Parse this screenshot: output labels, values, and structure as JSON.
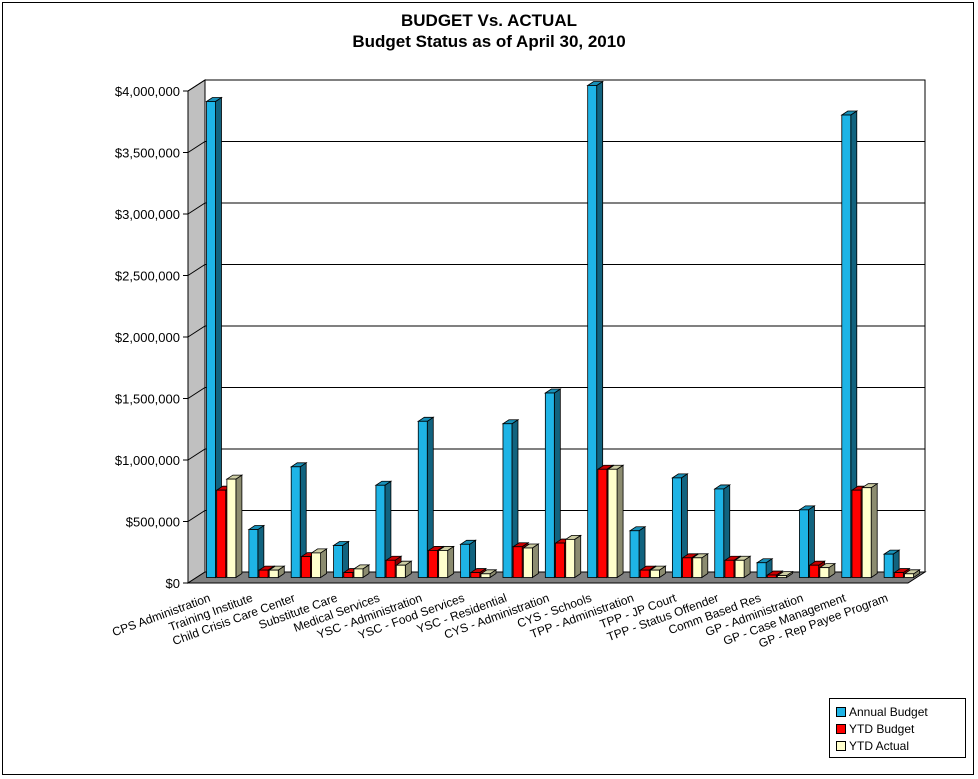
{
  "chart_data": {
    "type": "bar",
    "title": "BUDGET  Vs.  ACTUAL",
    "subtitle": "Budget Status as of April 30, 2010",
    "xlabel": "",
    "ylabel": "",
    "ylim": [
      0,
      4000000
    ],
    "yticks": [
      0,
      500000,
      1000000,
      1500000,
      2000000,
      2500000,
      3000000,
      3500000,
      4000000
    ],
    "ytick_labels": [
      "$0",
      "$500,000",
      "$1,000,000",
      "$1,500,000",
      "$2,000,000",
      "$2,500,000",
      "$3,000,000",
      "$3,500,000",
      "$4,000,000"
    ],
    "grid": true,
    "legend_position": "bottom-right",
    "categories": [
      "CPS Administration",
      "Training Institute",
      "Child Crisis Care Center",
      "Substitute Care",
      "Medical Services",
      "YSC - Administration",
      "YSC - Food Services",
      "YSC - Residential",
      "CYS - Administration",
      "CYS - Schools",
      "TPP - Administration",
      "TPP - JP Court",
      "TPP - Status Offender",
      "Comm Based Res",
      "GP - Administration",
      "GP - Case Management",
      "GP - Rep Payee Program"
    ],
    "series": [
      {
        "name": "Annual Budget",
        "color": "#1EB4E6",
        "values": [
          3870000,
          390000,
          900000,
          260000,
          750000,
          1270000,
          270000,
          1250000,
          1500000,
          4000000,
          380000,
          810000,
          720000,
          120000,
          550000,
          3760000,
          190000
        ]
      },
      {
        "name": "YTD Budget",
        "color": "#FF0000",
        "values": [
          710000,
          60000,
          170000,
          40000,
          140000,
          220000,
          40000,
          250000,
          280000,
          880000,
          60000,
          160000,
          140000,
          20000,
          100000,
          710000,
          40000
        ]
      },
      {
        "name": "YTD Actual",
        "color": "#FFFFCC",
        "values": [
          800000,
          60000,
          200000,
          70000,
          100000,
          220000,
          30000,
          240000,
          310000,
          880000,
          60000,
          160000,
          140000,
          15000,
          80000,
          730000,
          30000
        ]
      }
    ]
  }
}
